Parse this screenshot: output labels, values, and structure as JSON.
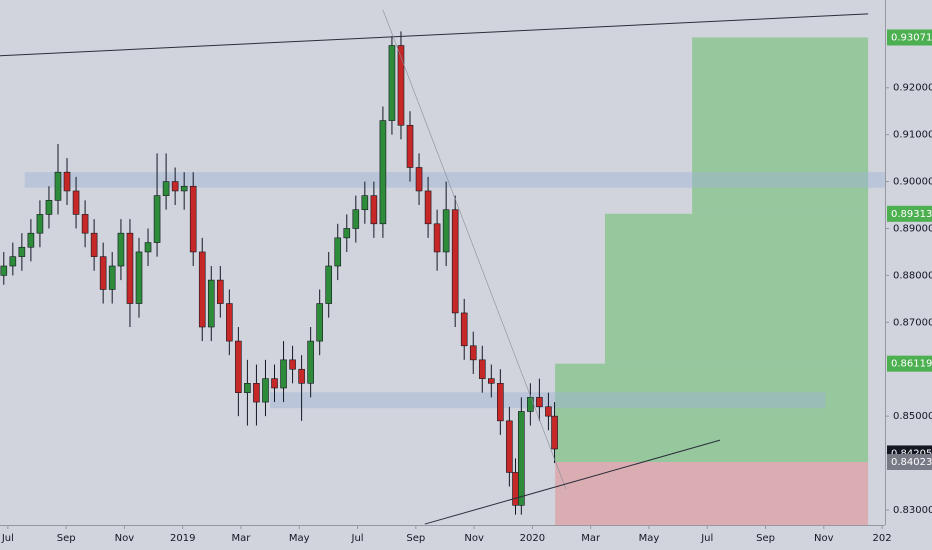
{
  "chart_data": {
    "type": "candlestick",
    "candles": {
      "x": [
        5.86,
        6.17,
        6.48,
        6.79,
        7.1,
        7.41,
        7.72,
        8.03,
        8.34,
        8.65,
        8.96,
        9.27,
        9.58,
        9.88,
        10.19,
        10.5,
        10.81,
        11.12,
        11.43,
        11.74,
        12.05,
        12.36,
        12.67,
        12.98,
        13.29,
        13.6,
        13.91,
        14.22,
        14.53,
        14.84,
        15.15,
        15.46,
        15.77,
        16.08,
        16.39,
        16.7,
        17.01,
        17.32,
        17.63,
        17.94,
        18.25,
        18.56,
        18.87,
        19.18,
        19.49,
        19.8,
        20.11,
        20.42,
        20.73,
        21.04,
        21.35,
        21.66,
        21.97,
        22.28,
        22.59,
        22.9,
        23.21,
        23.42,
        23.62,
        23.93,
        24.24,
        24.55,
        24.76
      ],
      "open": [
        0.88,
        0.882,
        0.884,
        0.886,
        0.889,
        0.893,
        0.896,
        0.902,
        0.898,
        0.893,
        0.889,
        0.884,
        0.877,
        0.882,
        0.889,
        0.874,
        0.885,
        0.887,
        0.897,
        0.9,
        0.898,
        0.899,
        0.885,
        0.869,
        0.879,
        0.874,
        0.866,
        0.855,
        0.857,
        0.853,
        0.858,
        0.856,
        0.862,
        0.86,
        0.857,
        0.866,
        0.874,
        0.882,
        0.888,
        0.89,
        0.894,
        0.897,
        0.891,
        0.913,
        0.929,
        0.912,
        0.903,
        0.898,
        0.891,
        0.885,
        0.894,
        0.872,
        0.865,
        0.862,
        0.858,
        0.857,
        0.849,
        0.838,
        0.831,
        0.851,
        0.854,
        0.852,
        0.85
      ],
      "high": [
        0.885,
        0.887,
        0.889,
        0.892,
        0.896,
        0.899,
        0.908,
        0.905,
        0.901,
        0.896,
        0.892,
        0.887,
        0.885,
        0.892,
        0.892,
        0.888,
        0.89,
        0.906,
        0.906,
        0.903,
        0.902,
        0.902,
        0.888,
        0.882,
        0.882,
        0.877,
        0.869,
        0.862,
        0.861,
        0.862,
        0.861,
        0.866,
        0.865,
        0.863,
        0.869,
        0.877,
        0.885,
        0.891,
        0.893,
        0.897,
        0.9,
        0.9,
        0.916,
        0.931,
        0.932,
        0.915,
        0.906,
        0.901,
        0.894,
        0.9,
        0.897,
        0.875,
        0.868,
        0.865,
        0.861,
        0.86,
        0.852,
        0.841,
        0.854,
        0.857,
        0.858,
        0.855,
        0.853
      ],
      "low": [
        0.878,
        0.88,
        0.881,
        0.883,
        0.886,
        0.89,
        0.893,
        0.895,
        0.89,
        0.886,
        0.881,
        0.874,
        0.874,
        0.879,
        0.869,
        0.871,
        0.882,
        0.884,
        0.894,
        0.895,
        0.894,
        0.882,
        0.866,
        0.866,
        0.871,
        0.863,
        0.85,
        0.848,
        0.848,
        0.85,
        0.853,
        0.853,
        0.857,
        0.849,
        0.854,
        0.863,
        0.871,
        0.879,
        0.885,
        0.887,
        0.891,
        0.888,
        0.888,
        0.91,
        0.909,
        0.9,
        0.895,
        0.888,
        0.881,
        0.882,
        0.869,
        0.862,
        0.859,
        0.855,
        0.854,
        0.846,
        0.835,
        0.829,
        0.829,
        0.848,
        0.849,
        0.847,
        0.84
      ],
      "close": [
        0.882,
        0.884,
        0.886,
        0.889,
        0.893,
        0.896,
        0.902,
        0.898,
        0.893,
        0.889,
        0.884,
        0.877,
        0.882,
        0.889,
        0.874,
        0.885,
        0.887,
        0.897,
        0.9,
        0.898,
        0.899,
        0.885,
        0.869,
        0.879,
        0.874,
        0.866,
        0.855,
        0.857,
        0.853,
        0.858,
        0.856,
        0.862,
        0.86,
        0.857,
        0.866,
        0.874,
        0.882,
        0.888,
        0.89,
        0.894,
        0.897,
        0.891,
        0.913,
        0.929,
        0.912,
        0.903,
        0.898,
        0.891,
        0.885,
        0.894,
        0.872,
        0.865,
        0.862,
        0.858,
        0.857,
        0.849,
        0.838,
        0.831,
        0.851,
        0.854,
        0.852,
        0.85,
        0.843
      ]
    },
    "up_color": "#2e8b3a",
    "down_color": "#c62828",
    "xlim": [
      5.73,
      36.1
    ],
    "ylim": [
      0.8268,
      0.9387
    ],
    "xticks": [
      {
        "value": 6,
        "label": "Jul"
      },
      {
        "value": 8,
        "label": "Sep"
      },
      {
        "value": 10,
        "label": "Nov"
      },
      {
        "value": 12,
        "label": "2019"
      },
      {
        "value": 14,
        "label": "Mar"
      },
      {
        "value": 16,
        "label": "May"
      },
      {
        "value": 18,
        "label": "Jul"
      },
      {
        "value": 20,
        "label": "Sep"
      },
      {
        "value": 22,
        "label": "Nov"
      },
      {
        "value": 24,
        "label": "2020"
      },
      {
        "value": 26,
        "label": "Mar"
      },
      {
        "value": 28,
        "label": "May"
      },
      {
        "value": 30,
        "label": "Jul"
      },
      {
        "value": 32,
        "label": "Sep"
      },
      {
        "value": 34,
        "label": "Nov"
      },
      {
        "value": 36,
        "label": "202"
      }
    ],
    "yticks": [
      {
        "value": 0.83,
        "label": "0.83000"
      },
      {
        "value": 0.85,
        "label": "0.85000"
      },
      {
        "value": 0.87,
        "label": "0.87000"
      },
      {
        "value": 0.88,
        "label": "0.88000"
      },
      {
        "value": 0.89,
        "label": "0.89000"
      },
      {
        "value": 0.9,
        "label": "0.90000"
      },
      {
        "value": 0.91,
        "label": "0.91000"
      },
      {
        "value": 0.92,
        "label": "0.92000"
      }
    ],
    "zones": [
      {
        "x": [
          6.58,
          36.1
        ],
        "y": [
          0.8987,
          0.902
        ]
      },
      {
        "x": [
          14.99,
          34.05
        ],
        "y": [
          0.8517,
          0.8551
        ]
      }
    ],
    "trendlines": [
      {
        "x": [
          5.73,
          35.52
        ],
        "y": [
          0.92681,
          0.93574
        ]
      },
      {
        "x": [
          18.87,
          25.15
        ],
        "y": [
          0.9366,
          0.8345
        ]
      },
      {
        "x": [
          20.31,
          30.44
        ],
        "y": [
          0.827,
          0.84489
        ]
      }
    ],
    "position": {
      "x": [
        24.78,
        35.52
      ],
      "entry": 0.84023,
      "stop": 0.8268,
      "targets": [
        {
          "x": 24.78,
          "y": 0.86119
        },
        {
          "x": 26.49,
          "y": 0.89313
        },
        {
          "x": 29.48,
          "y": 0.93071
        }
      ]
    },
    "price_labels": [
      {
        "value": 0.93071,
        "label": "0.93071",
        "color": "#4caf50"
      },
      {
        "value": 0.89313,
        "label": "0.89313",
        "color": "#4caf50"
      },
      {
        "value": 0.86119,
        "label": "0.86119",
        "color": "#4caf50"
      },
      {
        "value": 0.84205,
        "label": "0.84205",
        "color": "#131722"
      },
      {
        "value": 0.84023,
        "label": "0.84023",
        "color": "#787b86"
      }
    ]
  }
}
